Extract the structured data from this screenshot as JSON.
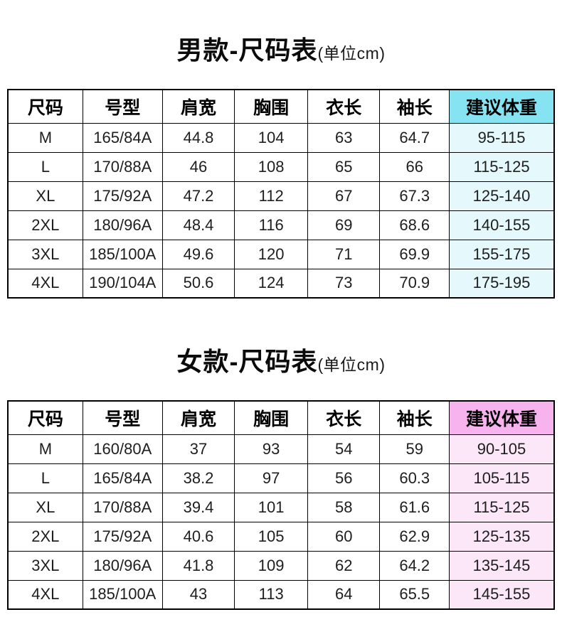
{
  "tables": [
    {
      "id": "men",
      "title": "男款-尺码表",
      "unit": "(单位cm)",
      "accent": {
        "header_bg": "#86E3F1",
        "cell_bg": "#E5F8FB"
      },
      "headers": [
        "尺码",
        "号型",
        "肩宽",
        "胸围",
        "衣长",
        "袖长",
        "建议体重"
      ],
      "rows": [
        [
          "M",
          "165/84A",
          "44.8",
          "104",
          "63",
          "64.7",
          "95-115"
        ],
        [
          "L",
          "170/88A",
          "46",
          "108",
          "65",
          "66",
          "115-125"
        ],
        [
          "XL",
          "175/92A",
          "47.2",
          "112",
          "67",
          "67.3",
          "125-140"
        ],
        [
          "2XL",
          "180/96A",
          "48.4",
          "116",
          "69",
          "68.6",
          "140-155"
        ],
        [
          "3XL",
          "185/100A",
          "49.6",
          "120",
          "71",
          "69.9",
          "155-175"
        ],
        [
          "4XL",
          "190/104A",
          "50.6",
          "124",
          "73",
          "70.9",
          "175-195"
        ]
      ]
    },
    {
      "id": "women",
      "title": "女款-尺码表",
      "unit": "(单位cm)",
      "accent": {
        "header_bg": "#F7B3EE",
        "cell_bg": "#FBE7F8"
      },
      "headers": [
        "尺码",
        "号型",
        "肩宽",
        "胸围",
        "衣长",
        "袖长",
        "建议体重"
      ],
      "rows": [
        [
          "M",
          "160/80A",
          "37",
          "93",
          "54",
          "59",
          "90-105"
        ],
        [
          "L",
          "165/84A",
          "38.2",
          "97",
          "56",
          "60.3",
          "105-115"
        ],
        [
          "XL",
          "170/88A",
          "39.4",
          "101",
          "58",
          "61.6",
          "115-125"
        ],
        [
          "2XL",
          "175/92A",
          "40.6",
          "105",
          "60",
          "62.9",
          "125-135"
        ],
        [
          "3XL",
          "180/96A",
          "41.8",
          "109",
          "62",
          "64.2",
          "135-145"
        ],
        [
          "4XL",
          "185/100A",
          "43",
          "113",
          "64",
          "65.5",
          "145-155"
        ]
      ]
    }
  ]
}
